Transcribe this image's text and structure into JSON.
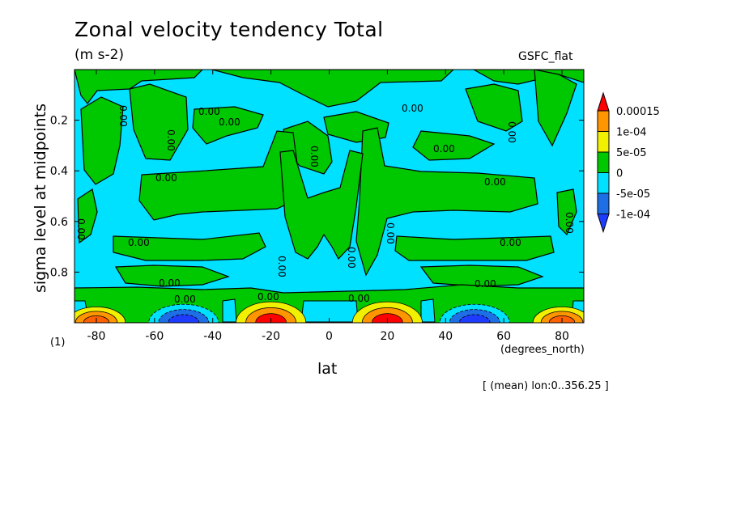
{
  "chart_data": {
    "type": "heatmap",
    "title": "Zonal velocity tendency Total",
    "units": "(m s-2)",
    "label_right": "GSFC_flat",
    "xlabel": "lat",
    "xunits": "(degrees_north)",
    "ylabel": "sigma level at midpoints",
    "panel_id": "(1)",
    "footnote": "[ (mean) lon:0..356.25 ]",
    "xlim": [
      -87.5,
      87.5
    ],
    "ylim": [
      0.0,
      1.0
    ],
    "y_reversed": true,
    "xticks": [
      -80,
      -60,
      -40,
      -20,
      0,
      20,
      40,
      60,
      80
    ],
    "xtick_labels": [
      "-80",
      "-60",
      "-40",
      "-20",
      "0",
      "20",
      "40",
      "60",
      "80"
    ],
    "yticks": [
      0.2,
      0.4,
      0.6,
      0.8
    ],
    "ytick_labels": [
      "0.2",
      "0.4",
      "0.6",
      "0.8"
    ],
    "colorbar": {
      "boundaries": [
        -0.0001,
        -5e-05,
        0,
        5e-05,
        0.0001,
        0.00015
      ],
      "labels": [
        "0.00015",
        "1e-04",
        "5e-05",
        "0",
        "-5e-05",
        "-1e-04"
      ],
      "colors": [
        "#1e6ee6",
        "#00e0ff",
        "#00c800",
        "#f0f000",
        "#ff9600",
        "#ff0000"
      ],
      "under_color": "#1e3cff",
      "over_color": "#ff0000"
    },
    "background_level": {
      "range": [
        -5e-05,
        0
      ],
      "color": "#00e0ff"
    },
    "regions": [
      {
        "label": "positive near-surface maximum",
        "lat_range": [
          -90,
          -70
        ],
        "sigma_range": [
          0.95,
          1.0
        ],
        "color": "#ff9600"
      },
      {
        "label": "negative near-surface minimum",
        "lat_range": [
          -62,
          -38
        ],
        "sigma_range": [
          0.94,
          1.0
        ],
        "color": "#1e3cff"
      },
      {
        "label": "positive near-surface maximum",
        "lat_range": [
          -32,
          -8
        ],
        "sigma_range": [
          0.93,
          1.0
        ],
        "color": "#ff0000"
      },
      {
        "label": "positive near-surface maximum",
        "lat_range": [
          8,
          32
        ],
        "sigma_range": [
          0.93,
          1.0
        ],
        "color": "#ff0000"
      },
      {
        "label": "negative near-surface minimum",
        "lat_range": [
          38,
          62
        ],
        "sigma_range": [
          0.94,
          1.0
        ],
        "color": "#1e3cff"
      },
      {
        "label": "positive near-surface maximum",
        "lat_range": [
          70,
          90
        ],
        "sigma_range": [
          0.95,
          1.0
        ],
        "color": "#ff9600"
      }
    ],
    "contour_label": "0.00"
  }
}
